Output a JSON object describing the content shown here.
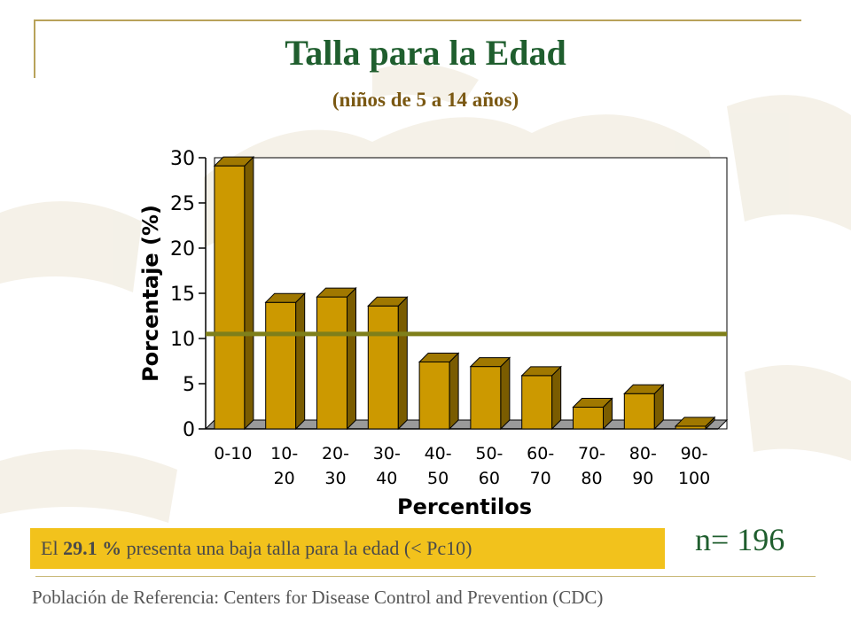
{
  "slide": {
    "title": "Talla para la Edad",
    "subtitle": "(niños de 5 a 14 años)",
    "callout": {
      "prefix": "El ",
      "highlight": "29.1 %",
      "suffix": " presenta una baja talla para la edad (< Pc10)"
    },
    "n_label": "n= 196",
    "footer": "Población de Referencia:  Centers for Disease Control and Prevention (CDC)"
  },
  "colors": {
    "bar_front": "#cc9900",
    "bar_side": "#7a5c00",
    "bar_top": "#a07800",
    "reference_line": "#7f7f1a",
    "title": "#1f5e2e",
    "callout_bg": "#f2c21c"
  },
  "chart_data": {
    "type": "bar",
    "categories": [
      [
        "0-10"
      ],
      [
        "10-",
        "20"
      ],
      [
        "20-",
        "30"
      ],
      [
        "30-",
        "40"
      ],
      [
        "40-",
        "50"
      ],
      [
        "50-",
        "60"
      ],
      [
        "60-",
        "70"
      ],
      [
        "70-",
        "80"
      ],
      [
        "80-",
        "90"
      ],
      [
        "90-",
        "100"
      ]
    ],
    "values": [
      29.1,
      14.0,
      14.6,
      13.6,
      7.4,
      6.9,
      5.9,
      2.4,
      3.9,
      0.3
    ],
    "xlabel": "Percentilos",
    "ylabel": "Porcentaje (%)",
    "ylim": [
      0,
      30
    ],
    "yticks": [
      0,
      5,
      10,
      15,
      20,
      25,
      30
    ],
    "reference_line": 10.5,
    "grid": false,
    "legend": "none"
  }
}
